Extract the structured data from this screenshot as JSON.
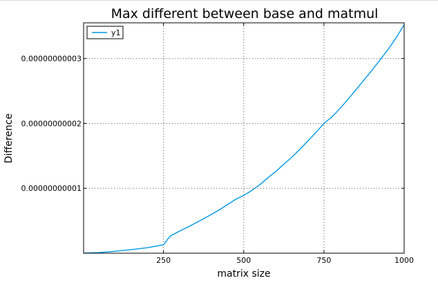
{
  "chart_data": {
    "type": "line",
    "title": "Max different between base and matmul",
    "xlabel": "matrix size",
    "ylabel": "Difference",
    "xlim": [
      1,
      1000
    ],
    "ylim": [
      0,
      3.55e-11
    ],
    "x_ticks": [
      250,
      500,
      750,
      1000
    ],
    "x_tick_labels": [
      "250",
      "500",
      "750",
      "1000"
    ],
    "y_ticks": [
      1e-11,
      2e-11,
      3e-11
    ],
    "y_tick_labels": [
      "0.00000000001",
      "0.00000000002",
      "0.00000000003"
    ],
    "grid": true,
    "legend_position": "top-left",
    "series": [
      {
        "name": "y1",
        "color": "#0099e6",
        "x": [
          1,
          50,
          100,
          150,
          200,
          250,
          270,
          300,
          325,
          350,
          375,
          400,
          425,
          450,
          475,
          500,
          520,
          550,
          575,
          600,
          625,
          650,
          675,
          700,
          725,
          750,
          775,
          800,
          825,
          850,
          875,
          900,
          925,
          950,
          975,
          1000
        ],
        "y": [
          0,
          1e-13,
          3e-13,
          5.5e-13,
          8.5e-13,
          1.3e-12,
          2.6e-12,
          3.4e-12,
          4e-12,
          4.65e-12,
          5.3e-12,
          6e-12,
          6.7e-12,
          7.5e-12,
          8.3e-12,
          8.9e-12,
          9.5e-12,
          1.055e-11,
          1.16e-11,
          1.26e-11,
          1.37e-11,
          1.48e-11,
          1.6e-11,
          1.73e-11,
          1.86e-11,
          2e-11,
          2.1e-11,
          2.23e-11,
          2.37e-11,
          2.52e-11,
          2.67e-11,
          2.82e-11,
          2.98e-11,
          3.14e-11,
          3.32e-11,
          3.52e-11
        ]
      }
    ]
  }
}
